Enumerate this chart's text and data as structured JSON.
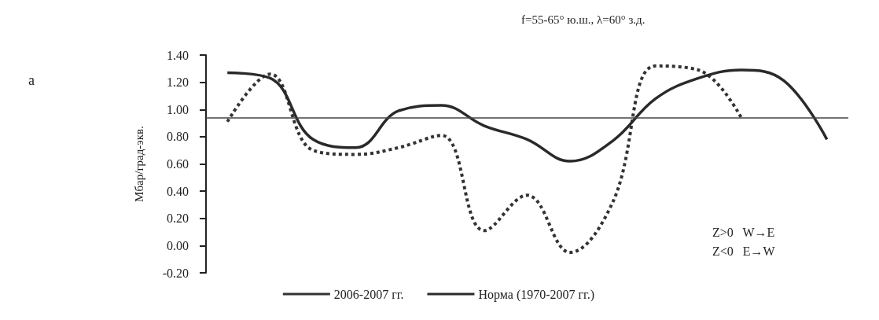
{
  "chart_data": {
    "type": "line",
    "title": "f=55-65° ю.ш., λ=60° з.д.",
    "ylabel": "Мбар/град-экв.",
    "categories": [
      null,
      null,
      null,
      null,
      null,
      null,
      null,
      null,
      null,
      null,
      null,
      null,
      null,
      null,
      null
    ],
    "series": [
      {
        "name": "2006-2007 гг.",
        "color": "#333333",
        "line_style": "dotted",
        "values": [
          0.91,
          1.26,
          0.7,
          0.67,
          0.72,
          0.81,
          0.11,
          0.37,
          -0.05,
          0.32,
          1.32,
          1.29,
          0.94,
          null,
          null
        ]
      },
      {
        "name": "Норма (1970-2007 гг.)",
        "color": "#2a2a2a",
        "line_style": "solid",
        "values": [
          1.27,
          1.23,
          0.78,
          0.72,
          0.99,
          1.03,
          0.88,
          0.78,
          0.62,
          0.77,
          1.08,
          1.23,
          1.29,
          1.21,
          0.78
        ]
      }
    ],
    "ylim": [
      -0.2,
      1.4
    ],
    "yticks": [
      {
        "value": -0.2,
        "label": "-0.20"
      },
      {
        "value": 0,
        "label": "0.00"
      },
      {
        "value": 0.2,
        "label": "0.20"
      },
      {
        "value": 0.4,
        "label": "0.40"
      },
      {
        "value": 0.6,
        "label": "0.60"
      },
      {
        "value": 0.8,
        "label": "0.80"
      },
      {
        "value": 1,
        "label": "1.00"
      },
      {
        "value": 1.2,
        "label": "1.20"
      },
      {
        "value": 1.4,
        "label": "1.40"
      }
    ],
    "ref_lines": [
      {
        "axis": "y",
        "value": 0.94,
        "color": "#444444"
      }
    ],
    "annotations": [
      "а",
      "Z>0   W→E",
      "Z<0   E→W"
    ],
    "grid": false,
    "legend": "bottom",
    "marker": "none",
    "tick_labels": "y"
  }
}
